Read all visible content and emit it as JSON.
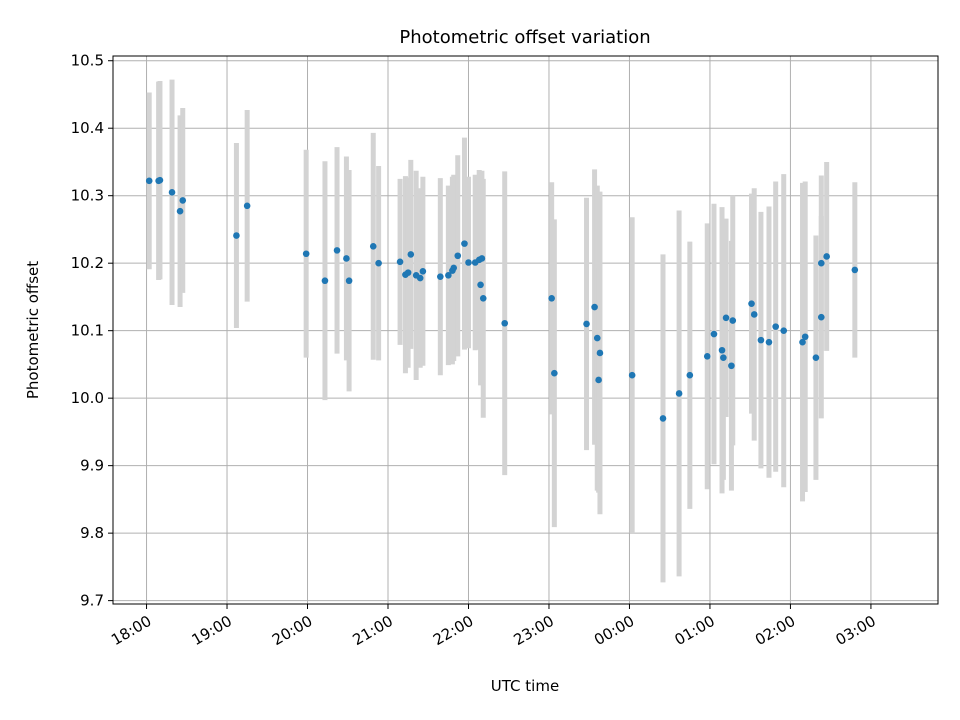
{
  "chart_data": {
    "type": "scatter",
    "title": "Photometric offset variation",
    "xlabel": "UTC time",
    "ylabel": "Photometric offset",
    "xlim": [
      "17:35",
      "03:50"
    ],
    "ylim": [
      9.695,
      10.507
    ],
    "grid": true,
    "x_ticks": [
      "18:00",
      "19:00",
      "20:00",
      "21:00",
      "22:00",
      "23:00",
      "00:00",
      "01:00",
      "02:00",
      "03:00"
    ],
    "y_ticks": [
      9.7,
      9.8,
      9.9,
      10.0,
      10.1,
      10.2,
      10.3,
      10.4,
      10.5
    ],
    "y_tick_labels": [
      "9.7",
      "9.8",
      "9.9",
      "10.0",
      "10.1",
      "10.2",
      "10.3",
      "10.4",
      "10.5"
    ],
    "colors": {
      "points": "#1f77b4",
      "error_bars": "#d3d3d3",
      "grid": "#b0b0b0"
    },
    "series": [
      {
        "x": [
          "18:02",
          "18:09",
          "18:10",
          "18:19",
          "18:25",
          "18:27",
          "19:07",
          "19:15",
          "19:59",
          "20:13",
          "20:22",
          "20:29",
          "20:31",
          "20:49",
          "20:53",
          "21:09",
          "21:13",
          "21:15",
          "21:17",
          "21:21",
          "21:24",
          "21:26",
          "21:39",
          "21:45",
          "21:48",
          "21:49",
          "21:52",
          "21:57",
          "22:00",
          "22:05",
          "22:08",
          "22:09",
          "22:10",
          "22:11",
          "22:27",
          "23:02",
          "23:04",
          "23:28",
          "23:34",
          "23:36",
          "23:37",
          "23:38",
          "00:02",
          "00:25",
          "00:37",
          "00:45",
          "00:58",
          "01:03",
          "01:09",
          "01:10",
          "01:12",
          "01:16",
          "01:17",
          "01:31",
          "01:33",
          "01:38",
          "01:44",
          "01:49",
          "01:55",
          "02:09",
          "02:11",
          "02:19",
          "02:23",
          "02:23",
          "02:27",
          "02:48"
        ],
        "y": [
          10.322,
          10.322,
          10.323,
          10.305,
          10.277,
          10.293,
          10.241,
          10.285,
          10.214,
          10.174,
          10.219,
          10.207,
          10.174,
          10.225,
          10.2,
          10.202,
          10.183,
          10.186,
          10.213,
          10.182,
          10.178,
          10.188,
          10.18,
          10.182,
          10.189,
          10.193,
          10.211,
          10.229,
          10.201,
          10.201,
          10.205,
          10.168,
          10.207,
          10.148,
          10.111,
          10.148,
          10.037,
          10.11,
          10.135,
          10.089,
          10.027,
          10.067,
          10.034,
          9.97,
          10.007,
          10.034,
          10.062,
          10.095,
          10.071,
          10.06,
          10.119,
          10.048,
          10.115,
          10.14,
          10.124,
          10.086,
          10.083,
          10.106,
          10.1,
          10.083,
          10.091,
          10.06,
          10.12,
          10.2,
          10.21,
          10.19
        ],
        "err": [
          0.131,
          0.147,
          0.147,
          0.167,
          0.142,
          0.137,
          0.137,
          0.142,
          0.154,
          0.177,
          0.153,
          0.151,
          0.164,
          0.168,
          0.144,
          0.123,
          0.146,
          0.141,
          0.14,
          0.155,
          0.133,
          0.14,
          0.146,
          0.133,
          0.139,
          0.138,
          0.149,
          0.157,
          0.127,
          0.13,
          0.133,
          0.149,
          0.13,
          0.177,
          0.225,
          0.172,
          0.228,
          0.187,
          0.204,
          0.226,
          0.167,
          0.239,
          0.234,
          0.243,
          0.271,
          0.198,
          0.197,
          0.193,
          0.212,
          0.181,
          0.147,
          0.185,
          0.185,
          0.163,
          0.187,
          0.19,
          0.201,
          0.215,
          0.232,
          0.236,
          0.23,
          0.181,
          0.15,
          0.13,
          0.14,
          0.13
        ]
      }
    ]
  }
}
